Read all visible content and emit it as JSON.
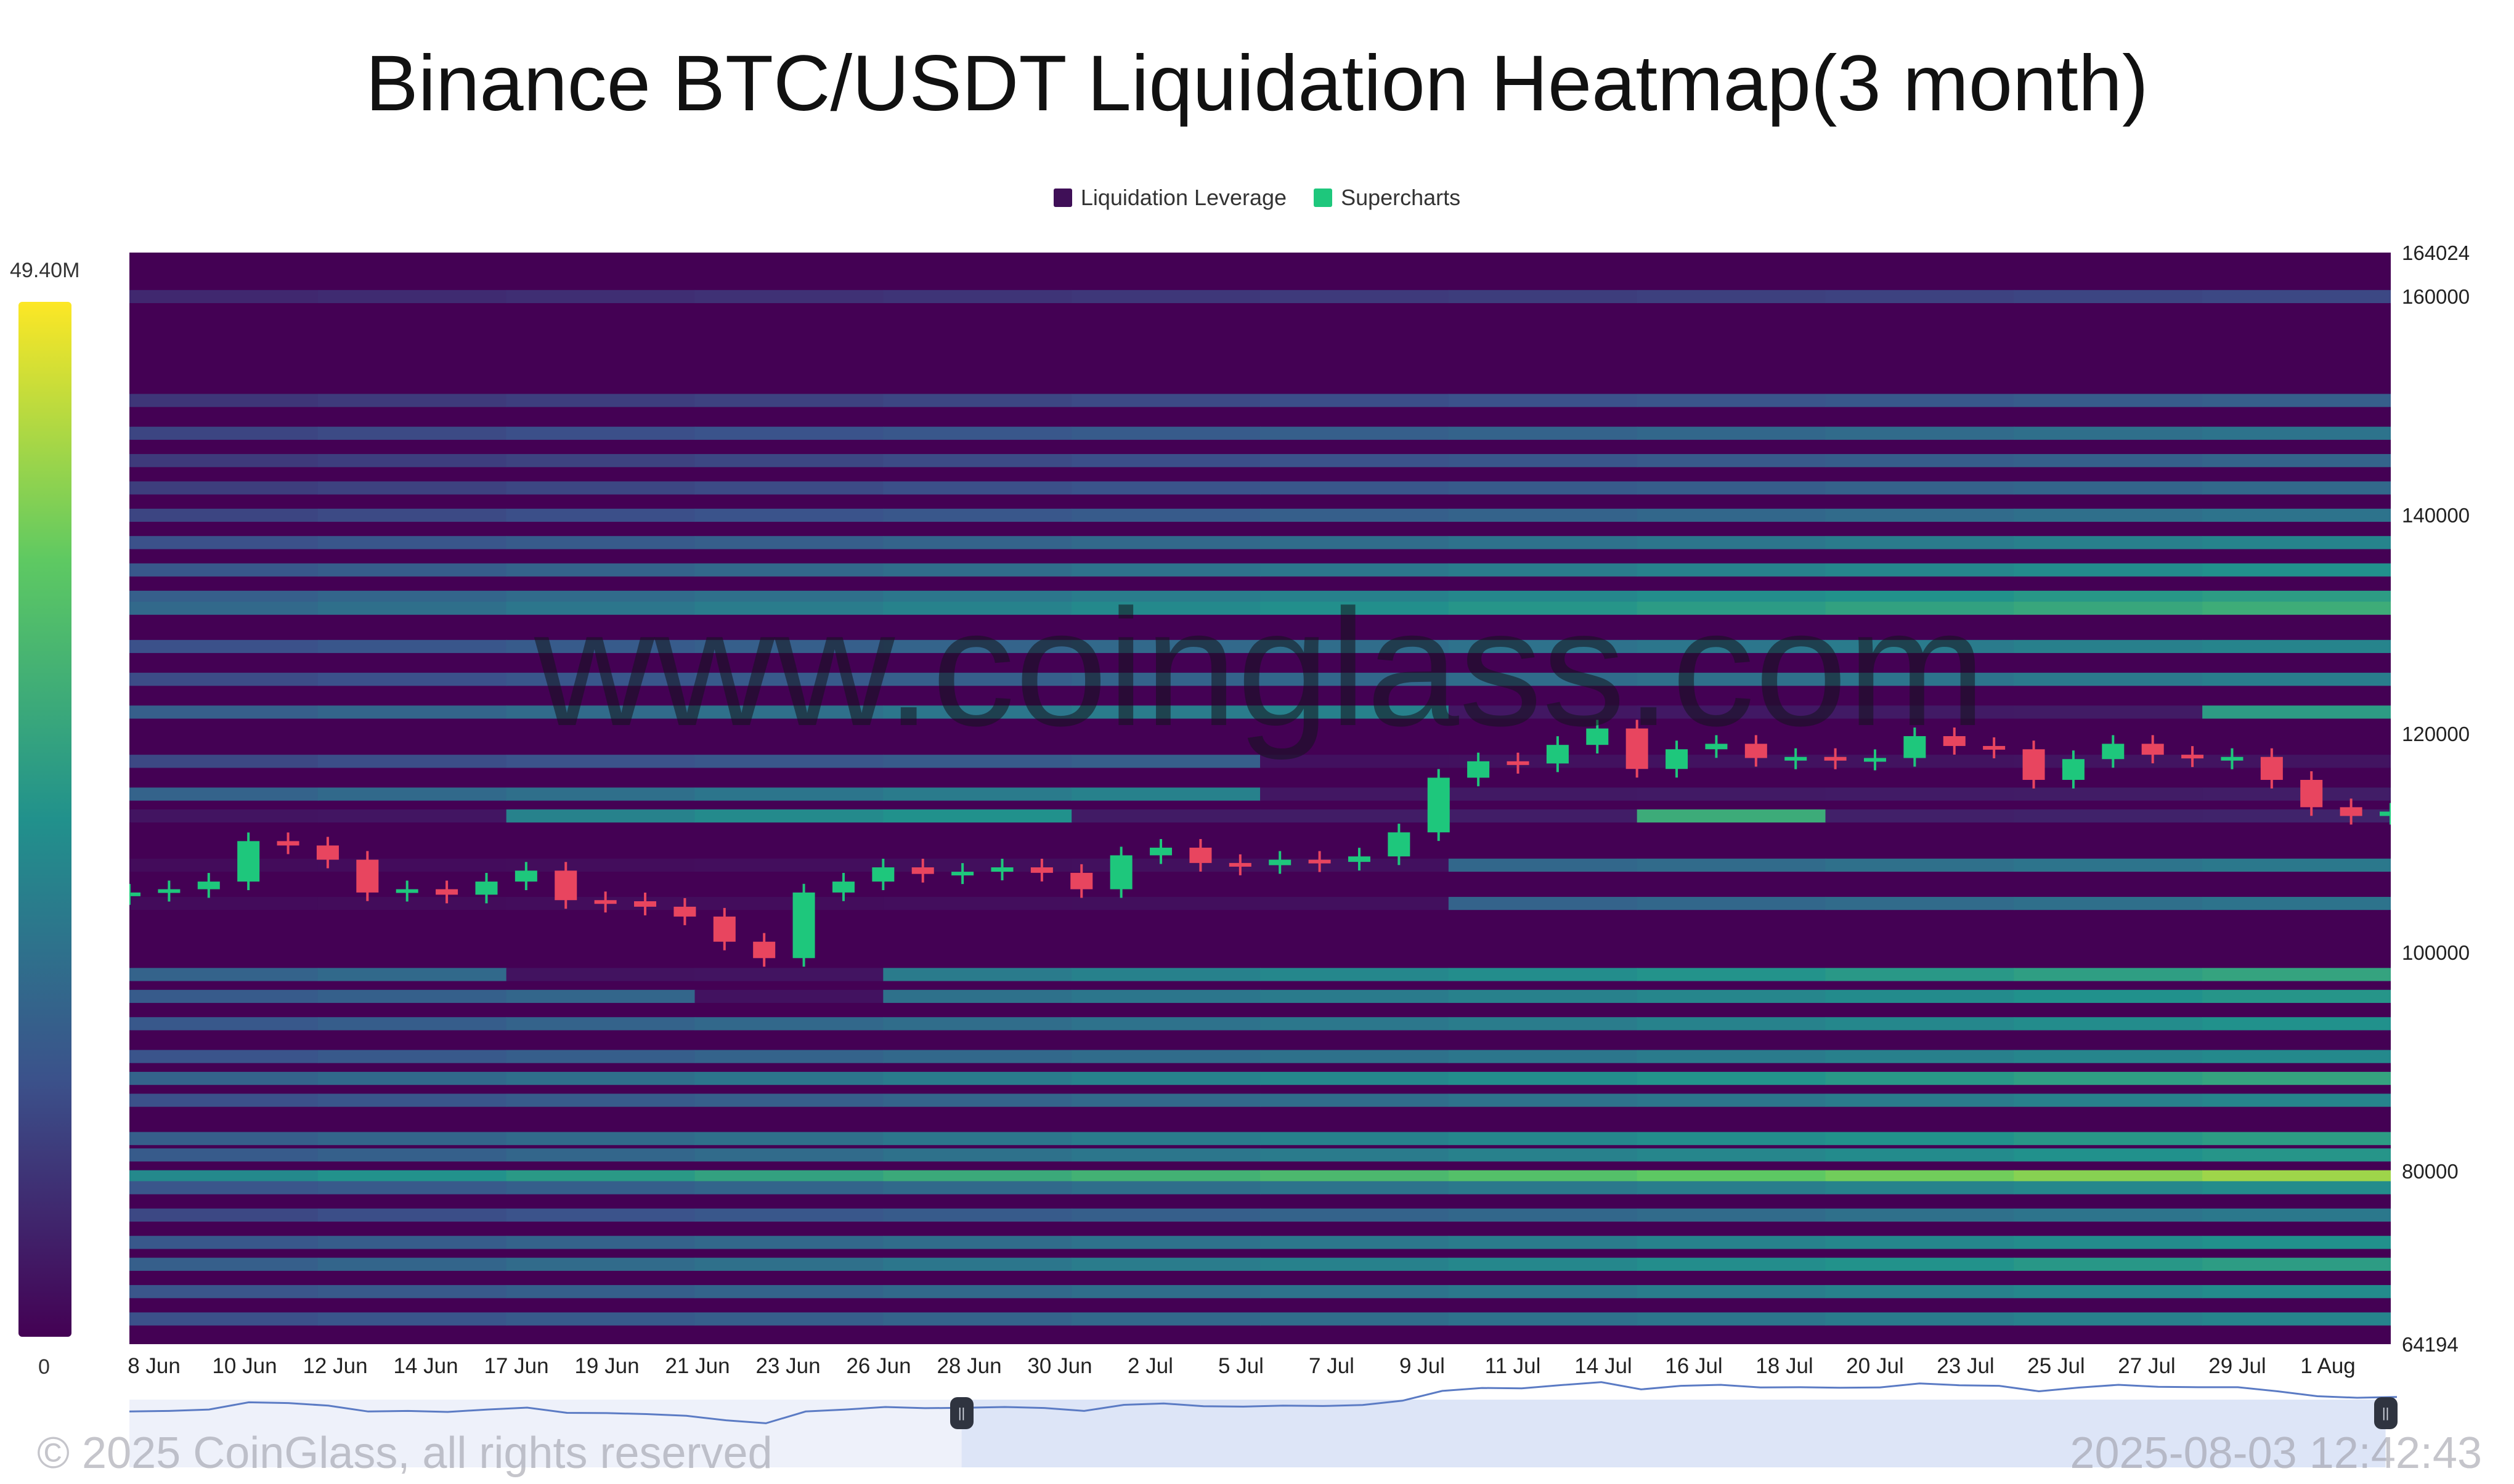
{
  "title": "Binance BTC/USDT Liquidation Heatmap(3 month)",
  "legend": [
    {
      "label": "Liquidation Leverage",
      "color": "#3f0f57"
    },
    {
      "label": "Supercharts",
      "color": "#1ec77c"
    }
  ],
  "watermark": "www.coinglass.com",
  "copyright": "© 2025 CoinGlass, all rights reserved",
  "timestamp": "2025-08-03 12:42:43",
  "chart_data": {
    "type": "heatmap",
    "title": "Binance BTC/USDT Liquidation Heatmap(3 month)",
    "colorscale": {
      "max_label": "49.40M",
      "min_label": "0",
      "colors": [
        "#440154",
        "#3b528b",
        "#21918c",
        "#5ec962",
        "#fde725"
      ]
    },
    "y_axis": {
      "ylim": [
        64194,
        164024
      ],
      "top_label": "164024",
      "bottom_label": "64194",
      "ticks": [
        {
          "value": 160000,
          "label": "160000"
        },
        {
          "value": 140000,
          "label": "140000"
        },
        {
          "value": 120000,
          "label": "120000"
        },
        {
          "value": 100000,
          "label": "100000"
        },
        {
          "value": 80000,
          "label": "80000"
        }
      ]
    },
    "x_axis": {
      "start": "2025-06-07",
      "end": "2025-08-03",
      "ticks": [
        "8 Jun",
        "10 Jun",
        "12 Jun",
        "14 Jun",
        "17 Jun",
        "19 Jun",
        "21 Jun",
        "23 Jun",
        "26 Jun",
        "28 Jun",
        "30 Jun",
        "2 Jul",
        "5 Jul",
        "7 Jul",
        "9 Jul",
        "11 Jul",
        "14 Jul",
        "16 Jul",
        "18 Jul",
        "20 Jul",
        "23 Jul",
        "25 Jul",
        "27 Jul",
        "29 Jul",
        "1 Aug"
      ]
    },
    "liquidation_bands": [
      {
        "price": 160000,
        "intensity": 0.22
      },
      {
        "price": 150500,
        "intensity": 0.3
      },
      {
        "price": 147500,
        "intensity": 0.38
      },
      {
        "price": 145000,
        "intensity": 0.32
      },
      {
        "price": 142500,
        "intensity": 0.34
      },
      {
        "price": 140000,
        "intensity": 0.38
      },
      {
        "price": 137500,
        "intensity": 0.45
      },
      {
        "price": 135000,
        "intensity": 0.5
      },
      {
        "price": 132500,
        "intensity": 0.55
      },
      {
        "price": 131500,
        "intensity": 0.62
      },
      {
        "price": 128000,
        "intensity": 0.45
      },
      {
        "price": 125000,
        "intensity": 0.42
      },
      {
        "price": 122000,
        "intensity": 0.55
      },
      {
        "price": 117500,
        "intensity": 0.4
      },
      {
        "price": 114500,
        "intensity": 0.58
      },
      {
        "price": 112500,
        "intensity": 0.7
      },
      {
        "price": 108000,
        "intensity": 0.4
      },
      {
        "price": 104500,
        "intensity": 0.38
      },
      {
        "price": 98000,
        "intensity": 0.58
      },
      {
        "price": 96000,
        "intensity": 0.52
      },
      {
        "price": 93500,
        "intensity": 0.5
      },
      {
        "price": 90500,
        "intensity": 0.47
      },
      {
        "price": 88500,
        "intensity": 0.58
      },
      {
        "price": 86500,
        "intensity": 0.45
      },
      {
        "price": 83000,
        "intensity": 0.55
      },
      {
        "price": 81500,
        "intensity": 0.52
      },
      {
        "price": 79500,
        "intensity": 0.85
      },
      {
        "price": 78500,
        "intensity": 0.48
      },
      {
        "price": 76000,
        "intensity": 0.4
      },
      {
        "price": 73500,
        "intensity": 0.5
      },
      {
        "price": 71500,
        "intensity": 0.55
      },
      {
        "price": 69000,
        "intensity": 0.48
      },
      {
        "price": 66500,
        "intensity": 0.45
      }
    ],
    "price_series": [
      {
        "date": "2025-06-07",
        "close": 105500
      },
      {
        "date": "2025-06-08",
        "close": 105800
      },
      {
        "date": "2025-06-09",
        "close": 106500
      },
      {
        "date": "2025-06-10",
        "close": 110200
      },
      {
        "date": "2025-06-11",
        "close": 109800
      },
      {
        "date": "2025-06-12",
        "close": 108500
      },
      {
        "date": "2025-06-13",
        "close": 105500
      },
      {
        "date": "2025-06-14",
        "close": 105800
      },
      {
        "date": "2025-06-15",
        "close": 105300
      },
      {
        "date": "2025-06-16",
        "close": 106500
      },
      {
        "date": "2025-06-17",
        "close": 107500
      },
      {
        "date": "2025-06-18",
        "close": 104800
      },
      {
        "date": "2025-06-19",
        "close": 104700
      },
      {
        "date": "2025-06-20",
        "close": 104200
      },
      {
        "date": "2025-06-21",
        "close": 103300
      },
      {
        "date": "2025-06-22",
        "close": 101000
      },
      {
        "date": "2025-06-23",
        "close": 99500
      },
      {
        "date": "2025-06-24",
        "close": 105500
      },
      {
        "date": "2025-06-25",
        "close": 106500
      },
      {
        "date": "2025-06-26",
        "close": 107800
      },
      {
        "date": "2025-06-27",
        "close": 107200
      },
      {
        "date": "2025-06-28",
        "close": 107400
      },
      {
        "date": "2025-06-29",
        "close": 107800
      },
      {
        "date": "2025-06-30",
        "close": 107300
      },
      {
        "date": "2025-07-01",
        "close": 105800
      },
      {
        "date": "2025-07-02",
        "close": 108900
      },
      {
        "date": "2025-07-03",
        "close": 109600
      },
      {
        "date": "2025-07-04",
        "close": 108200
      },
      {
        "date": "2025-07-05",
        "close": 108000
      },
      {
        "date": "2025-07-06",
        "close": 108500
      },
      {
        "date": "2025-07-07",
        "close": 108300
      },
      {
        "date": "2025-07-08",
        "close": 108800
      },
      {
        "date": "2025-07-09",
        "close": 111000
      },
      {
        "date": "2025-07-10",
        "close": 116000
      },
      {
        "date": "2025-07-11",
        "close": 117500
      },
      {
        "date": "2025-07-12",
        "close": 117300
      },
      {
        "date": "2025-07-13",
        "close": 119000
      },
      {
        "date": "2025-07-14",
        "close": 120500
      },
      {
        "date": "2025-07-15",
        "close": 116800
      },
      {
        "date": "2025-07-16",
        "close": 118600
      },
      {
        "date": "2025-07-17",
        "close": 119100
      },
      {
        "date": "2025-07-18",
        "close": 117800
      },
      {
        "date": "2025-07-19",
        "close": 117900
      },
      {
        "date": "2025-07-20",
        "close": 117600
      },
      {
        "date": "2025-07-21",
        "close": 117800
      },
      {
        "date": "2025-07-22",
        "close": 119800
      },
      {
        "date": "2025-07-23",
        "close": 118900
      },
      {
        "date": "2025-07-24",
        "close": 118600
      },
      {
        "date": "2025-07-25",
        "close": 115800
      },
      {
        "date": "2025-07-26",
        "close": 117700
      },
      {
        "date": "2025-07-27",
        "close": 119100
      },
      {
        "date": "2025-07-28",
        "close": 118100
      },
      {
        "date": "2025-07-29",
        "close": 117900
      },
      {
        "date": "2025-07-30",
        "close": 117900
      },
      {
        "date": "2025-07-31",
        "close": 115800
      },
      {
        "date": "2025-08-01",
        "close": 113300
      },
      {
        "date": "2025-08-02",
        "close": 112500
      },
      {
        "date": "2025-08-03",
        "close": 112900
      }
    ]
  }
}
